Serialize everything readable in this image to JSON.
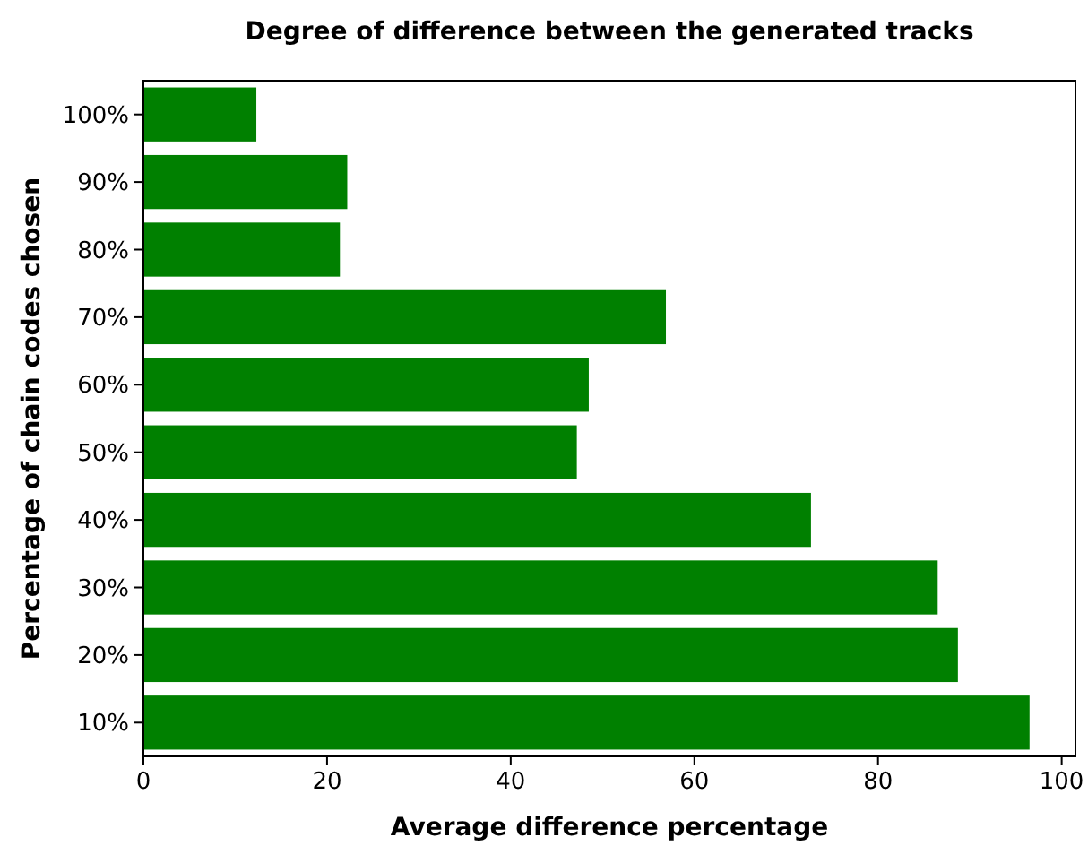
{
  "chart_data": {
    "type": "bar",
    "orientation": "horizontal",
    "title": "Degree of difference between the generated tracks",
    "xlabel": "Average difference percentage",
    "ylabel": "Percentage of chain codes chosen",
    "categories": [
      "100%",
      "90%",
      "80%",
      "70%",
      "60%",
      "50%",
      "40%",
      "30%",
      "20%",
      "10%"
    ],
    "values": [
      12.3,
      22.2,
      21.4,
      56.9,
      48.5,
      47.2,
      72.7,
      86.5,
      88.7,
      96.5
    ],
    "color": "#008000",
    "xlim": [
      0,
      101.5
    ],
    "xticks": [
      0,
      20,
      40,
      60,
      80,
      100
    ],
    "grid": false
  }
}
